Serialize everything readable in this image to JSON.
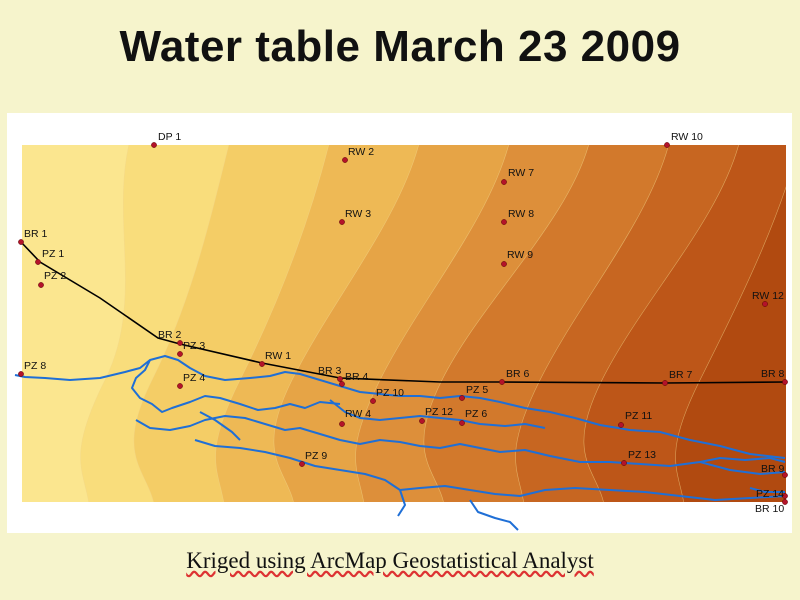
{
  "slide": {
    "title": "Water table March 23 2009",
    "caption": "Kriged using ArcMap Geostatistical Analyst"
  },
  "map": {
    "surface_colors": [
      "#fbe68f",
      "#f9dd7c",
      "#f4cd66",
      "#eeb955",
      "#e6a446",
      "#dd8f3a",
      "#d2792c",
      "#c76621",
      "#bd5618",
      "#b14a10"
    ],
    "contour_color": "#f1d58a",
    "river_color": "#1f6fd6",
    "profile_line_color": "#000000",
    "well_color": "#b3132a",
    "wells": [
      {
        "id": "DP 1"
      },
      {
        "id": "RW 10"
      },
      {
        "id": "RW 2"
      },
      {
        "id": "RW 7"
      },
      {
        "id": "RW 3"
      },
      {
        "id": "RW 8"
      },
      {
        "id": "RW 9"
      },
      {
        "id": "BR 1"
      },
      {
        "id": "PZ 1"
      },
      {
        "id": "PZ 2"
      },
      {
        "id": "RW 12"
      },
      {
        "id": "BR 2"
      },
      {
        "id": "PZ 3"
      },
      {
        "id": "PZ 8"
      },
      {
        "id": "RW 1"
      },
      {
        "id": "BR 3"
      },
      {
        "id": "BR 4"
      },
      {
        "id": "PZ 4"
      },
      {
        "id": "BR 6"
      },
      {
        "id": "BR 7"
      },
      {
        "id": "BR 8"
      },
      {
        "id": "PZ 10"
      },
      {
        "id": "PZ 5"
      },
      {
        "id": "RW 4"
      },
      {
        "id": "PZ 12"
      },
      {
        "id": "PZ 6"
      },
      {
        "id": "PZ 11"
      },
      {
        "id": "PZ 9"
      },
      {
        "id": "PZ 13"
      },
      {
        "id": "BR 9"
      },
      {
        "id": "PZ 14"
      },
      {
        "id": "BR 10"
      }
    ]
  }
}
